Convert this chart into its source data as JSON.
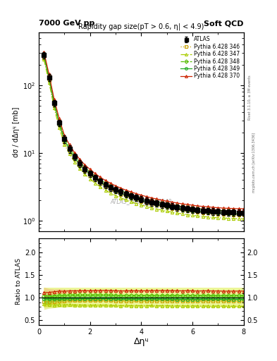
{
  "title_left": "7000 GeV pp",
  "title_right": "Soft QCD",
  "subtitle": "Rapidity gap size(pT > 0.6, η| < 4.9)",
  "ylabel_main": "dσ / dΔηᶣ [mb]",
  "ylabel_ratio": "Ratio to ATLAS",
  "xlabel": "Δηᶣ",
  "watermark": "ATLAS_2012_I1084540",
  "right_label1": "Rivet 3.1.10, ≥ 3M events",
  "right_label2": "mcplots.cern.ch [arXiv:1306.3436]",
  "xlim": [
    0,
    8
  ],
  "ylim_main": [
    0.7,
    600
  ],
  "ylim_ratio": [
    0.4,
    2.3
  ],
  "ratio_yticks": [
    0.5,
    1.0,
    1.5,
    2.0
  ],
  "x_data": [
    0.2,
    0.4,
    0.6,
    0.8,
    1.0,
    1.2,
    1.4,
    1.6,
    1.8,
    2.0,
    2.2,
    2.4,
    2.6,
    2.8,
    3.0,
    3.2,
    3.4,
    3.6,
    3.8,
    4.0,
    4.2,
    4.4,
    4.6,
    4.8,
    5.0,
    5.2,
    5.4,
    5.6,
    5.8,
    6.0,
    6.2,
    6.4,
    6.6,
    6.8,
    7.0,
    7.2,
    7.4,
    7.6,
    7.8,
    8.0
  ],
  "atlas_y": [
    280,
    130,
    55,
    28,
    16,
    11.5,
    8.8,
    7.0,
    5.8,
    5.0,
    4.3,
    3.8,
    3.4,
    3.1,
    2.85,
    2.65,
    2.47,
    2.32,
    2.19,
    2.08,
    1.98,
    1.89,
    1.82,
    1.75,
    1.69,
    1.64,
    1.59,
    1.55,
    1.51,
    1.48,
    1.45,
    1.42,
    1.4,
    1.38,
    1.36,
    1.35,
    1.34,
    1.33,
    1.32,
    1.32
  ],
  "atlas_err_y": [
    30,
    15,
    6,
    3,
    2,
    1.4,
    1.0,
    0.8,
    0.65,
    0.55,
    0.47,
    0.42,
    0.37,
    0.34,
    0.31,
    0.29,
    0.27,
    0.25,
    0.24,
    0.23,
    0.22,
    0.21,
    0.2,
    0.19,
    0.18,
    0.18,
    0.17,
    0.17,
    0.16,
    0.16,
    0.15,
    0.15,
    0.15,
    0.15,
    0.14,
    0.14,
    0.14,
    0.14,
    0.14,
    0.14
  ],
  "series": [
    {
      "label": "Pythia 6.428 346",
      "color": "#c8a000",
      "marker": "s",
      "fillstyle": "none",
      "linestyle": ":",
      "y": [
        255,
        118,
        50,
        26,
        14.8,
        10.8,
        8.2,
        6.55,
        5.44,
        4.68,
        4.04,
        3.57,
        3.2,
        2.9,
        2.65,
        2.46,
        2.3,
        2.16,
        2.04,
        1.93,
        1.84,
        1.76,
        1.69,
        1.63,
        1.57,
        1.52,
        1.48,
        1.44,
        1.4,
        1.37,
        1.34,
        1.32,
        1.3,
        1.28,
        1.26,
        1.25,
        1.24,
        1.23,
        1.22,
        1.22
      ],
      "band_color": "#d4b800",
      "band_alpha": 0.45,
      "ratio_y": [
        0.91,
        0.91,
        0.91,
        0.93,
        0.925,
        0.94,
        0.932,
        0.936,
        0.938,
        0.936,
        0.94,
        0.94,
        0.941,
        0.935,
        0.93,
        0.928,
        0.931,
        0.931,
        0.932,
        0.928,
        0.929,
        0.931,
        0.929,
        0.931,
        0.929,
        0.927,
        0.931,
        0.929,
        0.927,
        0.926,
        0.924,
        0.929,
        0.929,
        0.928,
        0.926,
        0.926,
        0.925,
        0.925,
        0.924,
        0.924
      ],
      "ratio_err": [
        0.12,
        0.08,
        0.06,
        0.05,
        0.04,
        0.035,
        0.03,
        0.028,
        0.027,
        0.025,
        0.024,
        0.023,
        0.022,
        0.022,
        0.021,
        0.02,
        0.02,
        0.02,
        0.019,
        0.019,
        0.019,
        0.018,
        0.018,
        0.018,
        0.018,
        0.017,
        0.017,
        0.017,
        0.017,
        0.017,
        0.017,
        0.017,
        0.016,
        0.016,
        0.016,
        0.016,
        0.016,
        0.016,
        0.016,
        0.016
      ]
    },
    {
      "label": "Pythia 6.428 347",
      "color": "#aacc00",
      "marker": "^",
      "fillstyle": "none",
      "linestyle": "-.",
      "y": [
        240,
        110,
        46,
        23.5,
        13.4,
        9.7,
        7.35,
        5.85,
        4.84,
        4.16,
        3.59,
        3.17,
        2.84,
        2.57,
        2.35,
        2.18,
        2.04,
        1.91,
        1.8,
        1.71,
        1.63,
        1.56,
        1.49,
        1.44,
        1.39,
        1.34,
        1.3,
        1.27,
        1.23,
        1.21,
        1.18,
        1.16,
        1.14,
        1.12,
        1.11,
        1.1,
        1.09,
        1.08,
        1.07,
        1.07
      ],
      "band_color": "#ccdd22",
      "band_alpha": 0.45,
      "ratio_y": [
        0.857,
        0.846,
        0.836,
        0.839,
        0.838,
        0.843,
        0.835,
        0.836,
        0.834,
        0.832,
        0.835,
        0.834,
        0.835,
        0.829,
        0.825,
        0.823,
        0.826,
        0.823,
        0.822,
        0.823,
        0.823,
        0.825,
        0.819,
        0.823,
        0.823,
        0.817,
        0.818,
        0.819,
        0.815,
        0.818,
        0.814,
        0.817,
        0.814,
        0.812,
        0.816,
        0.815,
        0.813,
        0.812,
        0.811,
        0.811
      ],
      "ratio_err": [
        0.12,
        0.08,
        0.06,
        0.05,
        0.04,
        0.035,
        0.03,
        0.028,
        0.027,
        0.025,
        0.024,
        0.023,
        0.022,
        0.022,
        0.021,
        0.02,
        0.02,
        0.02,
        0.019,
        0.019,
        0.019,
        0.018,
        0.018,
        0.018,
        0.018,
        0.017,
        0.017,
        0.017,
        0.017,
        0.017,
        0.017,
        0.017,
        0.016,
        0.016,
        0.016,
        0.016,
        0.016,
        0.016,
        0.016,
        0.016
      ]
    },
    {
      "label": "Pythia 6.428 348",
      "color": "#55bb00",
      "marker": "D",
      "fillstyle": "none",
      "linestyle": "--",
      "y": [
        290,
        135,
        57,
        29.5,
        16.8,
        12.2,
        9.3,
        7.4,
        6.14,
        5.28,
        4.56,
        4.03,
        3.61,
        3.28,
        3.0,
        2.78,
        2.6,
        2.44,
        2.3,
        2.18,
        2.08,
        1.99,
        1.91,
        1.84,
        1.78,
        1.72,
        1.67,
        1.62,
        1.58,
        1.55,
        1.52,
        1.49,
        1.47,
        1.44,
        1.42,
        1.41,
        1.4,
        1.39,
        1.38,
        1.38
      ],
      "band_color": "#99ee44",
      "band_alpha": 0.4,
      "ratio_y": [
        1.036,
        1.038,
        1.036,
        1.054,
        1.05,
        1.061,
        1.057,
        1.057,
        1.059,
        1.056,
        1.06,
        1.061,
        1.062,
        1.058,
        1.053,
        1.049,
        1.053,
        1.052,
        1.05,
        1.048,
        1.051,
        1.053,
        1.049,
        1.051,
        1.053,
        1.049,
        1.05,
        1.045,
        1.046,
        1.047,
        1.048,
        1.049,
        1.05,
        1.043,
        1.044,
        1.044,
        1.045,
        1.045,
        1.045,
        1.045
      ],
      "ratio_err": [
        0.12,
        0.08,
        0.06,
        0.05,
        0.04,
        0.035,
        0.03,
        0.028,
        0.027,
        0.025,
        0.024,
        0.023,
        0.022,
        0.022,
        0.021,
        0.02,
        0.02,
        0.02,
        0.019,
        0.019,
        0.019,
        0.018,
        0.018,
        0.018,
        0.018,
        0.017,
        0.017,
        0.017,
        0.017,
        0.017,
        0.017,
        0.017,
        0.016,
        0.016,
        0.016,
        0.016,
        0.016,
        0.016,
        0.016,
        0.016
      ]
    },
    {
      "label": "Pythia 6.428 349",
      "color": "#22aa22",
      "marker": "o",
      "fillstyle": "none",
      "linestyle": "-",
      "y": [
        272,
        126,
        53,
        27,
        15.5,
        11.2,
        8.55,
        6.82,
        5.66,
        4.87,
        4.2,
        3.71,
        3.32,
        3.02,
        2.76,
        2.56,
        2.39,
        2.24,
        2.12,
        2.01,
        1.91,
        1.83,
        1.76,
        1.69,
        1.63,
        1.58,
        1.53,
        1.49,
        1.45,
        1.42,
        1.39,
        1.37,
        1.35,
        1.33,
        1.31,
        1.3,
        1.29,
        1.28,
        1.27,
        1.27
      ],
      "band_color": "#44cc22",
      "band_alpha": 0.4,
      "ratio_y": [
        0.971,
        0.969,
        0.964,
        0.964,
        0.969,
        0.974,
        0.971,
        0.974,
        0.976,
        0.974,
        0.977,
        0.976,
        0.976,
        0.974,
        0.969,
        0.966,
        0.968,
        0.966,
        0.968,
        0.967,
        0.964,
        0.968,
        0.967,
        0.966,
        0.965,
        0.963,
        0.962,
        0.961,
        0.96,
        0.959,
        0.959,
        0.965,
        0.964,
        0.964,
        0.963,
        0.963,
        0.962,
        0.962,
        0.962,
        0.962
      ],
      "ratio_err": [
        0.12,
        0.08,
        0.06,
        0.05,
        0.04,
        0.035,
        0.03,
        0.028,
        0.027,
        0.025,
        0.024,
        0.023,
        0.022,
        0.022,
        0.021,
        0.02,
        0.02,
        0.02,
        0.019,
        0.019,
        0.019,
        0.018,
        0.018,
        0.018,
        0.018,
        0.017,
        0.017,
        0.017,
        0.017,
        0.017,
        0.017,
        0.017,
        0.016,
        0.016,
        0.016,
        0.016,
        0.016,
        0.016,
        0.016,
        0.016
      ]
    },
    {
      "label": "Pythia 6.428 370",
      "color": "#cc2200",
      "marker": "^",
      "fillstyle": "none",
      "linestyle": "-",
      "y": [
        310,
        145,
        62,
        32,
        18.2,
        13.2,
        10.1,
        8.05,
        6.68,
        5.75,
        4.97,
        4.39,
        3.94,
        3.58,
        3.28,
        3.04,
        2.84,
        2.67,
        2.52,
        2.39,
        2.28,
        2.18,
        2.1,
        2.02,
        1.95,
        1.89,
        1.83,
        1.78,
        1.74,
        1.7,
        1.66,
        1.63,
        1.61,
        1.58,
        1.56,
        1.54,
        1.53,
        1.52,
        1.51,
        1.51
      ],
      "band_color": "#ee8866",
      "band_alpha": 0.3,
      "ratio_y": [
        1.107,
        1.115,
        1.127,
        1.143,
        1.138,
        1.148,
        1.148,
        1.15,
        1.152,
        1.15,
        1.156,
        1.155,
        1.159,
        1.155,
        1.151,
        1.147,
        1.149,
        1.151,
        1.151,
        1.149,
        1.151,
        1.153,
        1.154,
        1.154,
        1.154,
        1.152,
        1.151,
        1.148,
        1.153,
        1.149,
        1.145,
        1.148,
        1.15,
        1.145,
        1.147,
        1.141,
        1.142,
        1.142,
        1.144,
        1.144
      ],
      "ratio_err": [
        0.12,
        0.08,
        0.06,
        0.05,
        0.04,
        0.035,
        0.03,
        0.028,
        0.027,
        0.025,
        0.024,
        0.023,
        0.022,
        0.022,
        0.021,
        0.02,
        0.02,
        0.02,
        0.019,
        0.019,
        0.019,
        0.018,
        0.018,
        0.018,
        0.018,
        0.017,
        0.017,
        0.017,
        0.017,
        0.017,
        0.017,
        0.017,
        0.016,
        0.016,
        0.016,
        0.016,
        0.016,
        0.016,
        0.016,
        0.016
      ]
    }
  ],
  "atlas_band_inner": 0.065,
  "atlas_band_outer": 0.22
}
